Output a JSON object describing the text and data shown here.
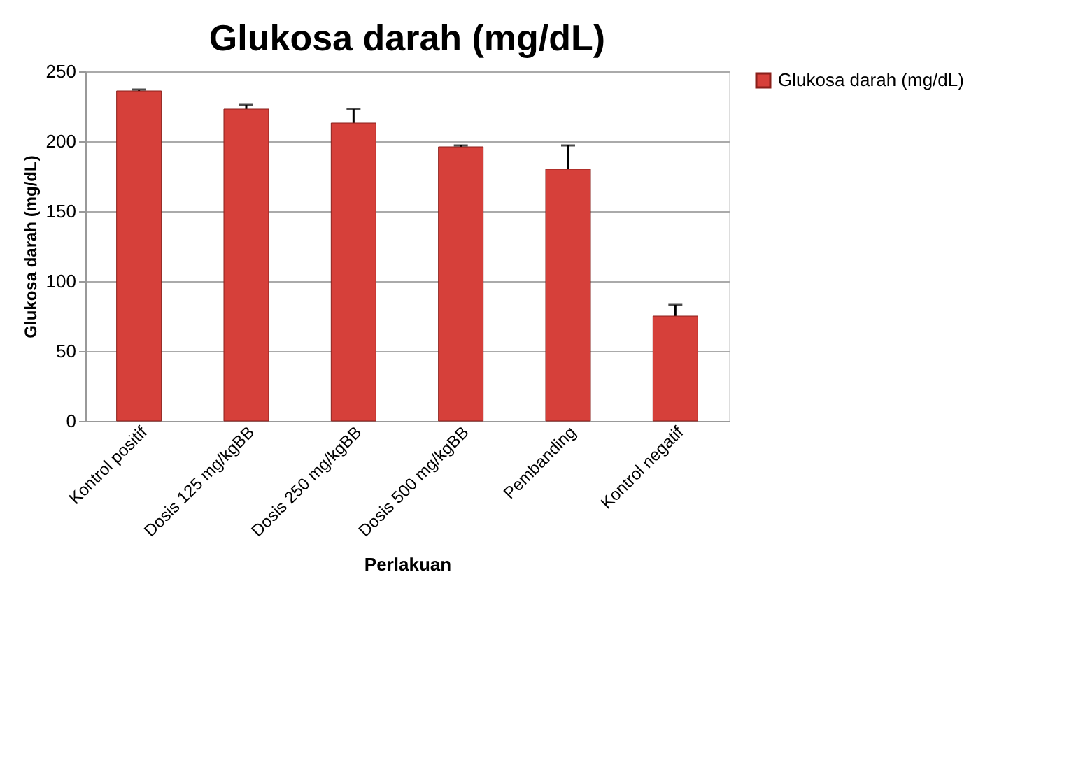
{
  "chart_data": {
    "type": "bar",
    "title": "Glukosa darah (mg/dL)",
    "xlabel": "Perlakuan",
    "ylabel": "Glukosa darah (mg/dL)",
    "categories": [
      "Kontrol positif",
      "Dosis 125 mg/kgBB",
      "Dosis 250 mg/kgBB",
      "Dosis 500 mg/kgBB",
      "Pembanding",
      "Kontrol negatif"
    ],
    "series": [
      {
        "name": "Glukosa darah (mg/dL)",
        "color": "#d6403a",
        "values": [
          236,
          223,
          213,
          196,
          180,
          75
        ],
        "errors": [
          1,
          3,
          10,
          1,
          17,
          8
        ]
      }
    ],
    "ylim": [
      0,
      250
    ],
    "yticks": [
      0,
      50,
      100,
      150,
      200,
      250
    ],
    "grid": "y",
    "legend": "right"
  }
}
